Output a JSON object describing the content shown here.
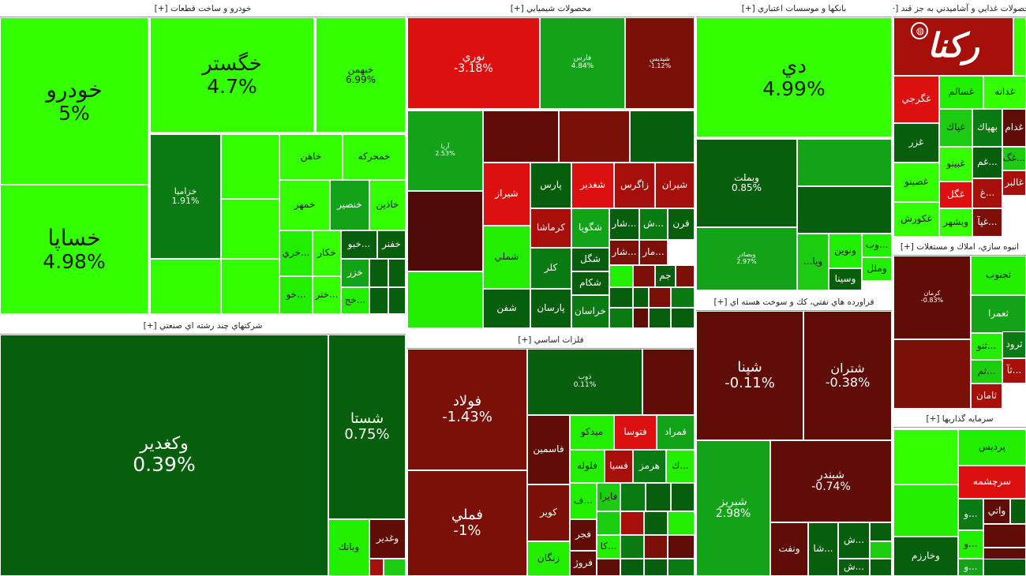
{
  "brand": {
    "logo_text": "رکنا",
    "logo_icon": "globe-icon"
  },
  "palette": {
    "g5": "#33ff00",
    "g4": "#22ee00",
    "g3": "#1ccc10",
    "g2": "#12a318",
    "g1": "#0a7b12",
    "g0": "#075e0c",
    "gz": "#054e0a",
    "r1": "#4d0a06",
    "r2": "#600d07",
    "r3": "#7a1008",
    "r4": "#a60f0a",
    "r5": "#dd1010"
  },
  "sectors": [
    {
      "title": "خودرو و ساخت قطعات [+]"
    },
    {
      "title": "محصولات شيميايي [+]"
    },
    {
      "title": "بانكها و موسسات اعتباري [+]"
    },
    {
      "title": "محصولات غذايي و آشاميدني به جز قند [+]"
    },
    {
      "title": "شركتهاي چند رشته اي صنعتي [+]"
    },
    {
      "title": "فلزات اساسي [+]"
    },
    {
      "title": "فراورده هاي نفتي، كك و سوخت هسته اي [+]"
    },
    {
      "title": "انبوه سازي، املاك و مستغلات [+]"
    },
    {
      "title": "سرمايه گذاريها [+]"
    }
  ],
  "tiles": [
    {
      "sym": "خودرو",
      "pct": "5%",
      "c": "g5"
    },
    {
      "sym": "خساپا",
      "pct": "4.98%",
      "c": "g5"
    },
    {
      "sym": "خگستر",
      "pct": "4.7%",
      "c": "g5"
    },
    {
      "sym": "خبهمن",
      "pct": "6.99%",
      "c": "g5"
    },
    {
      "sym": "خزاميا",
      "pct": "1.91%",
      "c": "g1"
    },
    {
      "sym": "خاهن",
      "pct": "",
      "c": "g5"
    },
    {
      "sym": "خمحركه",
      "pct": "",
      "c": "g5"
    },
    {
      "sym": "خمهر",
      "pct": "",
      "c": "g5"
    },
    {
      "sym": "خنصير",
      "pct": "",
      "c": "g2"
    },
    {
      "sym": "خاذين",
      "pct": "",
      "c": "g5"
    },
    {
      "sym": "خكار",
      "pct": "",
      "c": "g5"
    },
    {
      "sym": "خبو...",
      "pct": "",
      "c": "g0"
    },
    {
      "sym": "خفنر",
      "pct": "",
      "c": "g0"
    },
    {
      "sym": "خزر",
      "pct": "",
      "c": "g2"
    },
    {
      "sym": "خري...",
      "pct": "",
      "c": "g4"
    },
    {
      "sym": "خو...",
      "pct": "",
      "c": "g4"
    },
    {
      "sym": "ختر...",
      "pct": "",
      "c": "g5"
    },
    {
      "sym": "خج...",
      "pct": "",
      "c": "g4"
    },
    {
      "sym": "نوري",
      "pct": "-3.18%",
      "c": "r5"
    },
    {
      "sym": "فارس",
      "pct": "4.84%",
      "c": "g2"
    },
    {
      "sym": "شپديس",
      "pct": "-1.12%",
      "c": "r3"
    },
    {
      "sym": "آريا",
      "pct": "2.53%",
      "c": "g2"
    },
    {
      "sym": "شغدير",
      "pct": "",
      "c": "r5"
    },
    {
      "sym": "زاگرس",
      "pct": "",
      "c": "r4"
    },
    {
      "sym": "شيران",
      "pct": "",
      "c": "r4"
    },
    {
      "sym": "پارس",
      "pct": "",
      "c": "g0"
    },
    {
      "sym": "شيراز",
      "pct": "",
      "c": "r5"
    },
    {
      "sym": "كرماشا",
      "pct": "",
      "c": "r4"
    },
    {
      "sym": "شگويا",
      "pct": "",
      "c": "g2"
    },
    {
      "sym": "شار...",
      "pct": "",
      "c": "g0"
    },
    {
      "sym": "ش...",
      "pct": "",
      "c": "g1"
    },
    {
      "sym": "قرن",
      "pct": "",
      "c": "g0"
    },
    {
      "sym": "شملي",
      "pct": "",
      "c": "g4"
    },
    {
      "sym": "كلر",
      "pct": "",
      "c": "g1"
    },
    {
      "sym": "شگل",
      "pct": "",
      "c": "g0"
    },
    {
      "sym": "شار...",
      "pct": "",
      "c": "r3"
    },
    {
      "sym": "مار...",
      "pct": "",
      "c": "r3"
    },
    {
      "sym": "شكام",
      "pct": "",
      "c": "g0"
    },
    {
      "sym": "جم",
      "pct": "",
      "c": "g0"
    },
    {
      "sym": "شفن",
      "pct": "",
      "c": "g0"
    },
    {
      "sym": "پارسان",
      "pct": "",
      "c": "g0"
    },
    {
      "sym": "خراسان",
      "pct": "",
      "c": "g1"
    },
    {
      "sym": "دي",
      "pct": "4.99%",
      "c": "g5"
    },
    {
      "sym": "وبملت",
      "pct": "0.85%",
      "c": "g0"
    },
    {
      "sym": "وبصادر",
      "pct": "2.97%",
      "c": "g2"
    },
    {
      "sym": "ونوين",
      "pct": "",
      "c": "g4"
    },
    {
      "sym": "وب...",
      "pct": "",
      "c": "g4"
    },
    {
      "sym": "...ويا",
      "pct": "",
      "c": "g3"
    },
    {
      "sym": "وسينا",
      "pct": "",
      "c": "g0"
    },
    {
      "sym": "وملل",
      "pct": "",
      "c": "g4"
    },
    {
      "sym": "وكغدير",
      "pct": "0.39%",
      "c": "g0"
    },
    {
      "sym": "شستا",
      "pct": "0.75%",
      "c": "g0"
    },
    {
      "sym": "وبانك",
      "pct": "",
      "c": "g4"
    },
    {
      "sym": "وغدير",
      "pct": "",
      "c": "r2"
    },
    {
      "sym": "فولاد",
      "pct": "-1.43%",
      "c": "r3"
    },
    {
      "sym": "فملي",
      "pct": "-1%",
      "c": "r3"
    },
    {
      "sym": "ذوب",
      "pct": "0.11%",
      "c": "g0"
    },
    {
      "sym": "فاسمين",
      "pct": "",
      "c": "r2"
    },
    {
      "sym": "ميدكو",
      "pct": "",
      "c": "g4"
    },
    {
      "sym": "فتوسا",
      "pct": "",
      "c": "r5"
    },
    {
      "sym": "فمراد",
      "pct": "",
      "c": "g2"
    },
    {
      "sym": "فلوله",
      "pct": "",
      "c": "g4"
    },
    {
      "sym": "فسيا",
      "pct": "",
      "c": "r4"
    },
    {
      "sym": "هرمز",
      "pct": "",
      "c": "g1"
    },
    {
      "sym": "ك...",
      "pct": "",
      "c": "g4"
    },
    {
      "sym": "كوير",
      "pct": "",
      "c": "r3"
    },
    {
      "sym": "ف...",
      "pct": "",
      "c": "g4"
    },
    {
      "sym": "فايرا",
      "pct": "",
      "c": "g3"
    },
    {
      "sym": "فجر",
      "pct": "",
      "c": "r2"
    },
    {
      "sym": "كا...",
      "pct": "",
      "c": "g4"
    },
    {
      "sym": "زنگان",
      "pct": "",
      "c": "g4"
    },
    {
      "sym": "فروژ",
      "pct": "",
      "c": "r2"
    },
    {
      "sym": "شپنا",
      "pct": "-0.11%",
      "c": "r2"
    },
    {
      "sym": "شتران",
      "pct": "-0.38%",
      "c": "r2"
    },
    {
      "sym": "شبريز",
      "pct": "2.98%",
      "c": "g2"
    },
    {
      "sym": "شبندر",
      "pct": "-0.74%",
      "c": "r2"
    },
    {
      "sym": "ونفت",
      "pct": "",
      "c": "r2"
    },
    {
      "sym": "شا...",
      "pct": "",
      "c": "g0"
    },
    {
      "sym": "ش...",
      "pct": "",
      "c": "g0"
    },
    {
      "sym": "ش...",
      "pct": "",
      "c": "g0"
    },
    {
      "sym": "غگرجي",
      "pct": "",
      "c": "r5"
    },
    {
      "sym": "غسالم",
      "pct": "",
      "c": "g4"
    },
    {
      "sym": "غدانه",
      "pct": "",
      "c": "g5"
    },
    {
      "sym": "غپاك",
      "pct": "",
      "c": "g3"
    },
    {
      "sym": "بهپاك",
      "pct": "",
      "c": "g1"
    },
    {
      "sym": "غدام",
      "pct": "",
      "c": "r2"
    },
    {
      "sym": "غزر",
      "pct": "",
      "c": "g0"
    },
    {
      "sym": "غبينو",
      "pct": "",
      "c": "g5"
    },
    {
      "sym": "غم...",
      "pct": "",
      "c": "g0"
    },
    {
      "sym": "غگ...",
      "pct": "",
      "c": "g3"
    },
    {
      "sym": "غگل",
      "pct": "",
      "c": "r5"
    },
    {
      "sym": "غ...",
      "pct": "",
      "c": "r4"
    },
    {
      "sym": "غالبر",
      "pct": "",
      "c": "r4"
    },
    {
      "sym": "غصينو",
      "pct": "",
      "c": "g5"
    },
    {
      "sym": "غكورش",
      "pct": "",
      "c": "g5"
    },
    {
      "sym": "وبشهر",
      "pct": "",
      "c": "g5"
    },
    {
      "sym": "غپآ...",
      "pct": "",
      "c": "r3"
    },
    {
      "sym": "كرمان",
      "pct": "-0.83%",
      "c": "r2"
    },
    {
      "sym": "ثجنوب",
      "pct": "",
      "c": "g4"
    },
    {
      "sym": "ثعمرا",
      "pct": "",
      "c": "g2"
    },
    {
      "sym": "ثنو...",
      "pct": "",
      "c": "g4"
    },
    {
      "sym": "ثرود",
      "pct": "",
      "c": "g1"
    },
    {
      "sym": "ثم...",
      "pct": "",
      "c": "g3"
    },
    {
      "sym": "ثآ...",
      "pct": "",
      "c": "r4"
    },
    {
      "sym": "ثامان",
      "pct": "",
      "c": "r4"
    },
    {
      "sym": "پرديس",
      "pct": "",
      "c": "g4"
    },
    {
      "sym": "سرچشمه",
      "pct": "",
      "c": "r5"
    },
    {
      "sym": "و...",
      "pct": "",
      "c": "g1"
    },
    {
      "sym": "واتي",
      "pct": "",
      "c": "r2"
    },
    {
      "sym": "و...",
      "pct": "",
      "c": "g4"
    },
    {
      "sym": "وخارزم",
      "pct": "",
      "c": "g0"
    },
    {
      "sym": "و...",
      "pct": "",
      "c": "g2"
    }
  ]
}
